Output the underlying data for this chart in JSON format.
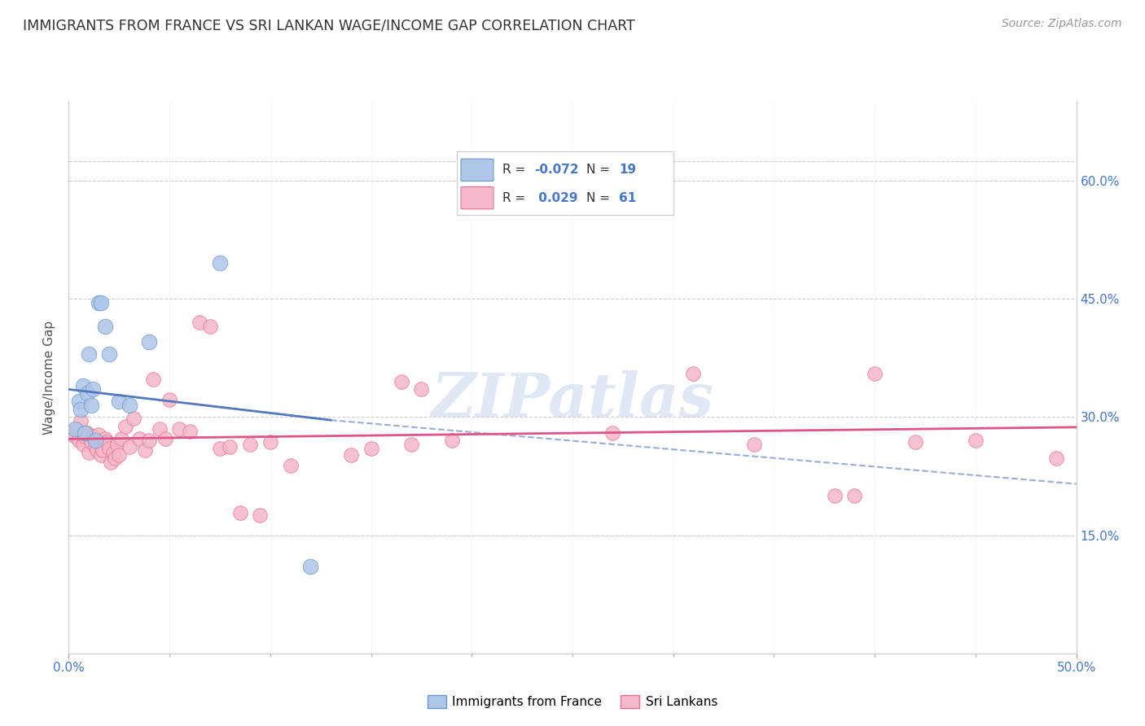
{
  "title": "IMMIGRANTS FROM FRANCE VS SRI LANKAN WAGE/INCOME GAP CORRELATION CHART",
  "source": "Source: ZipAtlas.com",
  "ylabel": "Wage/Income Gap",
  "xlim": [
    0.0,
    0.5
  ],
  "ylim": [
    0.0,
    0.7
  ],
  "ytick_positions": [
    0.15,
    0.3,
    0.45,
    0.6
  ],
  "ytick_labels": [
    "15.0%",
    "30.0%",
    "45.0%",
    "60.0%"
  ],
  "background_color": "#ffffff",
  "grid_color": "#cccccc",
  "watermark": "ZIPatlas",
  "france_color": "#aec6e8",
  "srilanka_color": "#f5b8c8",
  "france_edge_color": "#6699cc",
  "srilanka_edge_color": "#e87090",
  "france_line_color": "#5577bb",
  "srilanka_line_color": "#dd5588",
  "legend_value_color": "#4477cc",
  "france_scatter": [
    [
      0.003,
      0.285
    ],
    [
      0.005,
      0.32
    ],
    [
      0.006,
      0.31
    ],
    [
      0.007,
      0.34
    ],
    [
      0.008,
      0.28
    ],
    [
      0.009,
      0.33
    ],
    [
      0.01,
      0.38
    ],
    [
      0.011,
      0.315
    ],
    [
      0.012,
      0.335
    ],
    [
      0.013,
      0.27
    ],
    [
      0.015,
      0.445
    ],
    [
      0.016,
      0.445
    ],
    [
      0.018,
      0.415
    ],
    [
      0.02,
      0.38
    ],
    [
      0.025,
      0.32
    ],
    [
      0.03,
      0.315
    ],
    [
      0.04,
      0.395
    ],
    [
      0.075,
      0.495
    ],
    [
      0.12,
      0.11
    ]
  ],
  "srilanka_scatter": [
    [
      0.002,
      0.28
    ],
    [
      0.003,
      0.275
    ],
    [
      0.004,
      0.285
    ],
    [
      0.005,
      0.27
    ],
    [
      0.006,
      0.295
    ],
    [
      0.007,
      0.265
    ],
    [
      0.008,
      0.275
    ],
    [
      0.009,
      0.28
    ],
    [
      0.01,
      0.255
    ],
    [
      0.011,
      0.268
    ],
    [
      0.012,
      0.275
    ],
    [
      0.013,
      0.262
    ],
    [
      0.014,
      0.258
    ],
    [
      0.015,
      0.278
    ],
    [
      0.016,
      0.252
    ],
    [
      0.017,
      0.258
    ],
    [
      0.018,
      0.272
    ],
    [
      0.019,
      0.268
    ],
    [
      0.02,
      0.26
    ],
    [
      0.021,
      0.242
    ],
    [
      0.022,
      0.255
    ],
    [
      0.023,
      0.248
    ],
    [
      0.024,
      0.265
    ],
    [
      0.025,
      0.252
    ],
    [
      0.026,
      0.272
    ],
    [
      0.028,
      0.288
    ],
    [
      0.03,
      0.262
    ],
    [
      0.032,
      0.298
    ],
    [
      0.035,
      0.272
    ],
    [
      0.038,
      0.258
    ],
    [
      0.04,
      0.27
    ],
    [
      0.042,
      0.348
    ],
    [
      0.045,
      0.285
    ],
    [
      0.048,
      0.272
    ],
    [
      0.05,
      0.322
    ],
    [
      0.055,
      0.285
    ],
    [
      0.06,
      0.282
    ],
    [
      0.065,
      0.42
    ],
    [
      0.07,
      0.415
    ],
    [
      0.075,
      0.26
    ],
    [
      0.08,
      0.262
    ],
    [
      0.085,
      0.178
    ],
    [
      0.09,
      0.265
    ],
    [
      0.095,
      0.175
    ],
    [
      0.1,
      0.268
    ],
    [
      0.11,
      0.238
    ],
    [
      0.14,
      0.252
    ],
    [
      0.15,
      0.26
    ],
    [
      0.165,
      0.345
    ],
    [
      0.17,
      0.265
    ],
    [
      0.175,
      0.335
    ],
    [
      0.19,
      0.27
    ],
    [
      0.27,
      0.28
    ],
    [
      0.31,
      0.355
    ],
    [
      0.34,
      0.265
    ],
    [
      0.38,
      0.2
    ],
    [
      0.39,
      0.2
    ],
    [
      0.4,
      0.355
    ],
    [
      0.42,
      0.268
    ],
    [
      0.45,
      0.27
    ],
    [
      0.49,
      0.248
    ]
  ],
  "france_trendline_solid": [
    [
      0.0,
      0.335
    ],
    [
      0.13,
      0.296
    ]
  ],
  "france_trendline_dashed": [
    [
      0.13,
      0.296
    ],
    [
      0.5,
      0.215
    ]
  ],
  "srilanka_trendline": [
    [
      0.0,
      0.272
    ],
    [
      0.5,
      0.287
    ]
  ]
}
